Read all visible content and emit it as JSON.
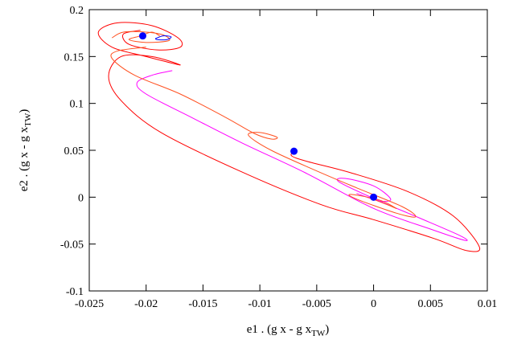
{
  "chart_data": {
    "type": "line",
    "title": "",
    "xlabel": {
      "main": "e1 . (g x - g x",
      "sub": "TW",
      "close": ")"
    },
    "ylabel": {
      "main": "e2 . (g x - g x",
      "sub": "TW",
      "close": ")"
    },
    "xlim": [
      -0.025,
      0.01
    ],
    "ylim": [
      -0.1,
      0.2
    ],
    "xticks": [
      -0.025,
      -0.02,
      -0.015,
      -0.01,
      -0.005,
      0,
      0.005,
      0.01
    ],
    "xtick_labels": [
      "-0.025",
      "-0.02",
      "-0.015",
      "-0.01",
      "-0.005",
      "0",
      "0.005",
      "0.01"
    ],
    "yticks": [
      -0.1,
      -0.05,
      0,
      0.05,
      0.1,
      0.15,
      0.2
    ],
    "ytick_labels": [
      "-0.1",
      "-0.05",
      "0",
      "0.05",
      "0.1",
      "0.15",
      "0.2"
    ],
    "grid": false,
    "series": [
      {
        "name": "red trajectory",
        "color": "#ff0000",
        "points": [
          [
            -0.007,
            0.049
          ],
          [
            -0.0072,
            0.044
          ],
          [
            -0.0058,
            0.038
          ],
          [
            -0.002,
            0.026
          ],
          [
            0.003,
            0.006
          ],
          [
            0.007,
            -0.02
          ],
          [
            0.0093,
            -0.053
          ],
          [
            0.0082,
            -0.057
          ],
          [
            0.0053,
            -0.044
          ],
          [
            0.0,
            -0.024
          ],
          [
            -0.0046,
            -0.008
          ],
          [
            -0.0116,
            0.027
          ],
          [
            -0.0187,
            0.069
          ],
          [
            -0.0222,
            0.103
          ],
          [
            -0.0233,
            0.129
          ],
          [
            -0.0222,
            0.15
          ],
          [
            -0.0195,
            0.15
          ],
          [
            -0.017,
            0.141
          ],
          [
            -0.02,
            0.15
          ],
          [
            -0.023,
            0.16
          ],
          [
            -0.0242,
            0.176
          ],
          [
            -0.0225,
            0.186
          ],
          [
            -0.0195,
            0.183
          ],
          [
            -0.0172,
            0.17
          ],
          [
            -0.017,
            0.16
          ],
          [
            -0.019,
            0.157
          ],
          [
            -0.0215,
            0.163
          ],
          [
            -0.022,
            0.174
          ],
          [
            -0.0205,
            0.178
          ]
        ]
      },
      {
        "name": "magenta trajectory",
        "color": "#ff00ff",
        "points": [
          [
            -0.0177,
            0.135
          ],
          [
            -0.0195,
            0.13
          ],
          [
            -0.0208,
            0.122
          ],
          [
            -0.02,
            0.11
          ],
          [
            -0.016,
            0.085
          ],
          [
            -0.0116,
            0.058
          ],
          [
            -0.006,
            0.026
          ],
          [
            0.0,
            -0.012
          ],
          [
            0.005,
            -0.034
          ],
          [
            0.008,
            -0.046
          ],
          [
            0.0076,
            -0.041
          ],
          [
            0.004,
            -0.022
          ],
          [
            0.0005,
            -0.004
          ],
          [
            -0.003,
            0.016
          ],
          [
            -0.0025,
            0.02
          ],
          [
            0.0,
            0.012
          ],
          [
            0.0015,
            -0.002
          ],
          [
            0.0005,
            -0.004
          ],
          [
            -0.0015,
            0.004
          ]
        ]
      },
      {
        "name": "orange trajectory",
        "color": "#ff5020",
        "points": [
          [
            -0.02,
            0.16
          ],
          [
            -0.0225,
            0.156
          ],
          [
            -0.023,
            0.148
          ],
          [
            -0.021,
            0.13
          ],
          [
            -0.017,
            0.11
          ],
          [
            -0.013,
            0.085
          ],
          [
            -0.0105,
            0.068
          ],
          [
            -0.009,
            0.062
          ],
          [
            -0.0085,
            0.064
          ],
          [
            -0.01,
            0.069
          ],
          [
            -0.011,
            0.066
          ],
          [
            -0.009,
            0.05
          ],
          [
            -0.005,
            0.028
          ],
          [
            -0.0015,
            0.01
          ],
          [
            0.0025,
            -0.01
          ],
          [
            0.0037,
            -0.021
          ],
          [
            0.002,
            -0.017
          ],
          [
            -0.0015,
            -0.002
          ],
          [
            -0.002,
            0.003
          ],
          [
            0.0005,
            -0.003
          ],
          [
            0.002,
            -0.012
          ],
          [
            0.0012,
            -0.008
          ],
          [
            -0.0005,
            0.0
          ]
        ]
      },
      {
        "name": "orange top cluster",
        "color": "#ff5020",
        "points": [
          [
            -0.023,
            0.17
          ],
          [
            -0.022,
            0.176
          ],
          [
            -0.02,
            0.176
          ],
          [
            -0.0185,
            0.173
          ],
          [
            -0.018,
            0.167
          ],
          [
            -0.02,
            0.165
          ],
          [
            -0.0215,
            0.168
          ],
          [
            -0.0205,
            0.172
          ],
          [
            -0.0195,
            0.176
          ],
          [
            -0.0188,
            0.172
          ]
        ]
      },
      {
        "name": "blue loop",
        "color": "#0000ff",
        "points": [
          [
            -0.0192,
            0.169
          ],
          [
            -0.0185,
            0.172
          ],
          [
            -0.0178,
            0.171
          ],
          [
            -0.0182,
            0.168
          ],
          [
            -0.019,
            0.168
          ],
          [
            -0.0192,
            0.169
          ]
        ]
      }
    ],
    "markers": {
      "color": "#0000ff",
      "points": [
        [
          -0.0203,
          0.172
        ],
        [
          -0.007,
          0.049
        ],
        [
          0,
          0
        ]
      ]
    }
  }
}
